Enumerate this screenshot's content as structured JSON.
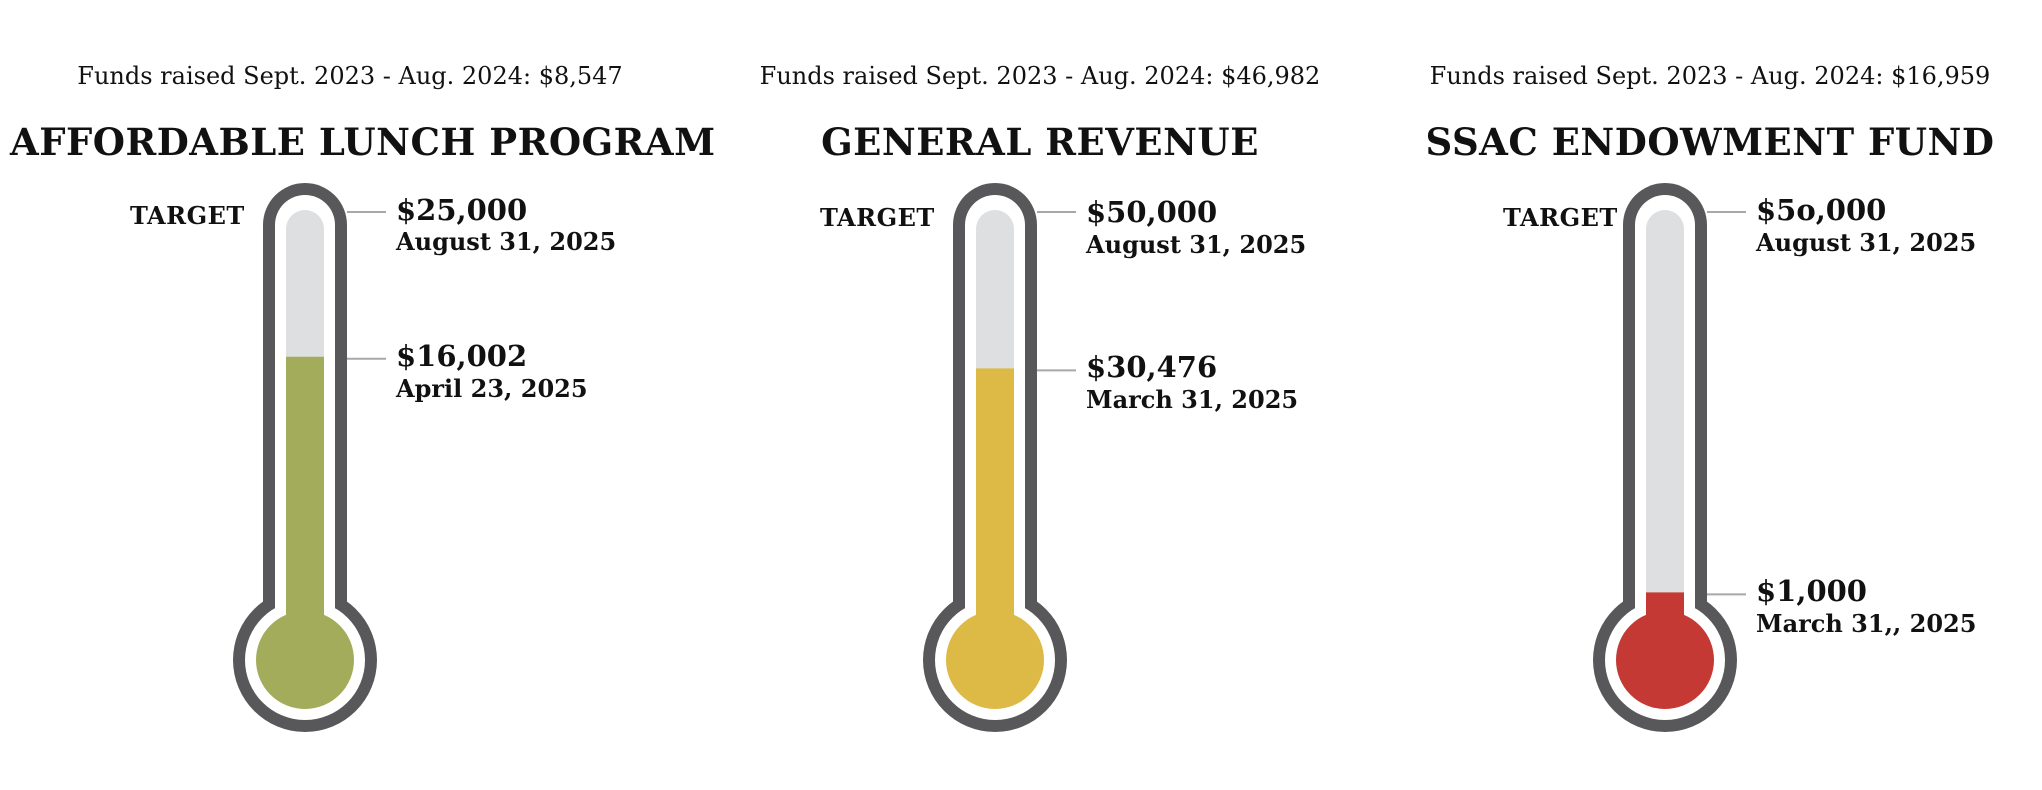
{
  "chart_data": [
    {
      "type": "thermometer",
      "funds_label": "Funds raised Sept. 2023 - Aug. 2024: $8,547",
      "title": "AFFORDABLE LUNCH PROGRAM",
      "target_label": "TARGET",
      "target_value": 25000,
      "target_amount_label": "$25,000",
      "target_date": "August 31, 2025",
      "current_value": 16002,
      "current_amount_label": "$16,002",
      "current_date": "April 23, 2025",
      "fill_color": "#A3AC5B"
    },
    {
      "type": "thermometer",
      "funds_label": "Funds raised Sept. 2023 - Aug. 2024: $46,982",
      "title": "GENERAL REVENUE",
      "target_label": "TARGET",
      "target_value": 50000,
      "target_amount_label": "$50,000",
      "target_date": "August 31, 2025",
      "current_value": 30476,
      "current_amount_label": "$30,476",
      "current_date": "March 31, 2025",
      "fill_color": "#DDB945"
    },
    {
      "type": "thermometer",
      "funds_label": "Funds raised Sept. 2023 - Aug. 2024: $16,959",
      "title": "SSAC ENDOWMENT FUND",
      "target_label": "TARGET",
      "target_value": 50000,
      "target_amount_label": "$5o,000",
      "target_date": "August 31, 2025",
      "current_value": 1000,
      "current_amount_label": "$1,000",
      "current_date": "March 31,, 2025",
      "fill_color": "#C43934"
    }
  ],
  "colors": {
    "outline": "#58585A",
    "tube_empty": "#DEDFE0"
  }
}
